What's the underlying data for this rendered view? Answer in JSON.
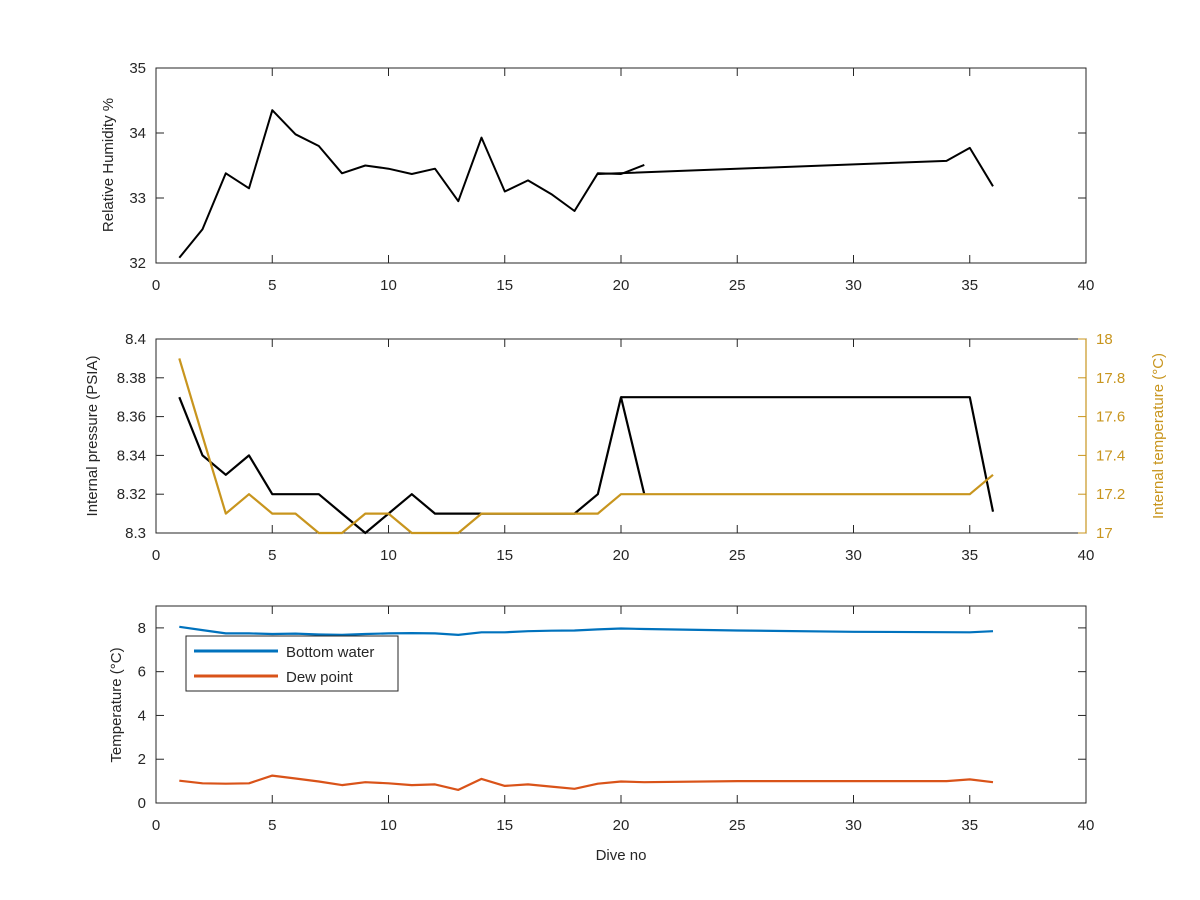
{
  "colors": {
    "axis": "#262626",
    "black_series": "#000000",
    "internal_temperature": "#c8951e",
    "bottom_water": "#0072bd",
    "dew_point": "#d95319"
  },
  "chart_data": [
    {
      "type": "line",
      "ylabel": "Relative Humidity %",
      "xlim": [
        0,
        40
      ],
      "ylim": [
        32,
        35
      ],
      "xticks": [
        "0",
        "5",
        "10",
        "15",
        "20",
        "25",
        "30",
        "35",
        "40"
      ],
      "yticks": [
        "32",
        "33",
        "34",
        "35"
      ],
      "series": [
        {
          "x": [
            1,
            2,
            3,
            4,
            5,
            6,
            7,
            8,
            9,
            10,
            11,
            12,
            13,
            14,
            15,
            16,
            17,
            18,
            19,
            20,
            21
          ],
          "y": [
            32.08,
            32.52,
            33.38,
            33.15,
            34.35,
            33.98,
            33.8,
            33.38,
            33.5,
            33.45,
            33.37,
            33.45,
            32.95,
            33.93,
            33.1,
            33.27,
            33.06,
            32.8,
            33.38,
            33.37,
            33.51
          ]
        },
        {
          "x": [
            19,
            34,
            35,
            36
          ],
          "y": [
            33.37,
            33.57,
            33.77,
            33.18
          ]
        }
      ]
    },
    {
      "type": "line",
      "ylabel": "Internal pressure (PSIA)",
      "y2label": "Internal temperature (°C)",
      "xlim": [
        0,
        40
      ],
      "ylim": [
        8.3,
        8.4
      ],
      "y2lim": [
        17,
        18
      ],
      "xticks": [
        "0",
        "5",
        "10",
        "15",
        "20",
        "25",
        "30",
        "35",
        "40"
      ],
      "yticks": [
        "8.3",
        "8.32",
        "8.34",
        "8.36",
        "8.38",
        "8.4"
      ],
      "y2ticks": [
        "17",
        "17.2",
        "17.4",
        "17.6",
        "17.8",
        "18"
      ],
      "series": [
        {
          "axis": "left",
          "x": [
            1,
            2,
            3,
            4,
            5,
            6,
            7,
            8,
            9,
            10,
            11,
            12,
            13,
            14,
            15,
            16,
            17,
            18,
            19,
            20,
            21
          ],
          "y": [
            8.37,
            8.34,
            8.33,
            8.34,
            8.32,
            8.32,
            8.32,
            8.31,
            8.3,
            8.31,
            8.32,
            8.31,
            8.31,
            8.31,
            8.31,
            8.31,
            8.31,
            8.31,
            8.32,
            8.37,
            8.32
          ]
        },
        {
          "axis": "left",
          "x": [
            20,
            35,
            36
          ],
          "y": [
            8.37,
            8.37,
            8.311
          ]
        },
        {
          "axis": "right",
          "x": [
            1,
            2,
            3,
            4,
            5,
            6,
            7,
            8,
            9,
            10,
            11,
            12,
            13,
            14,
            15,
            16,
            17,
            18,
            19,
            20,
            21,
            35,
            36
          ],
          "y": [
            17.9,
            17.5,
            17.1,
            17.2,
            17.1,
            17.1,
            17.0,
            17.0,
            17.1,
            17.1,
            17.0,
            17.0,
            17.0,
            17.1,
            17.1,
            17.1,
            17.1,
            17.1,
            17.1,
            17.2,
            17.2,
            17.2,
            17.3
          ]
        }
      ]
    },
    {
      "type": "line",
      "xlabel": "Dive no",
      "ylabel": "Temperature (°C)",
      "xlim": [
        0,
        40
      ],
      "ylim": [
        0,
        9
      ],
      "xticks": [
        "0",
        "5",
        "10",
        "15",
        "20",
        "25",
        "30",
        "35",
        "40"
      ],
      "yticks": [
        "0",
        "2",
        "4",
        "6",
        "8"
      ],
      "legend_position": "top-left",
      "series": [
        {
          "name": "Bottom water",
          "x": [
            1,
            2,
            3,
            4,
            5,
            6,
            7,
            8,
            9,
            10,
            11,
            12,
            13,
            14,
            15,
            16,
            17,
            18,
            19,
            20,
            21,
            25,
            30,
            35,
            36
          ],
          "y": [
            8.05,
            7.9,
            7.75,
            7.75,
            7.72,
            7.74,
            7.7,
            7.68,
            7.72,
            7.75,
            7.76,
            7.75,
            7.68,
            7.8,
            7.8,
            7.85,
            7.87,
            7.88,
            7.93,
            7.97,
            7.95,
            7.88,
            7.82,
            7.8,
            7.85
          ]
        },
        {
          "name": "Dew point",
          "x": [
            1,
            2,
            3,
            4,
            5,
            6,
            7,
            8,
            9,
            10,
            11,
            12,
            13,
            14,
            15,
            16,
            17,
            18,
            19,
            20,
            21,
            25,
            30,
            34,
            35,
            36
          ],
          "y": [
            1.02,
            0.9,
            0.88,
            0.9,
            1.25,
            1.12,
            0.98,
            0.82,
            0.95,
            0.9,
            0.82,
            0.85,
            0.6,
            1.1,
            0.78,
            0.85,
            0.75,
            0.65,
            0.88,
            0.98,
            0.95,
            1.0,
            1.0,
            1.0,
            1.08,
            0.95
          ]
        }
      ]
    }
  ]
}
